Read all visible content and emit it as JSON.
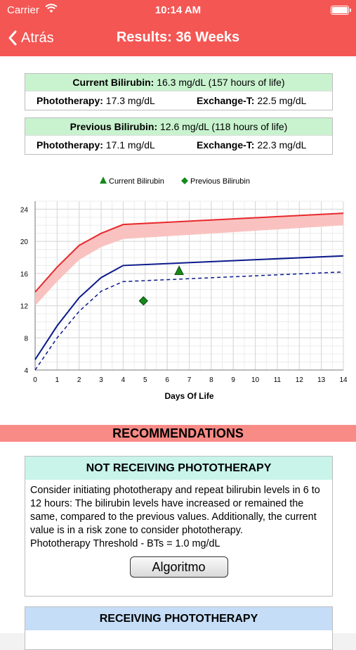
{
  "status": {
    "carrier": "Carrier",
    "time": "10:14 AM"
  },
  "nav": {
    "back_label": "Atrás",
    "title": "Results: 36 Weeks"
  },
  "current": {
    "label": "Current Bilirubin:",
    "value": "16.3 mg/dL (157 hours of life)",
    "photo_label": "Phototherapy:",
    "photo_value": "17.3 mg/dL",
    "exchange_label": "Exchange-T:",
    "exchange_value": "22.5 mg/dL"
  },
  "previous": {
    "label": "Previous Bilirubin:",
    "value": "12.6 mg/dL (118 hours of life)",
    "photo_label": "Phototherapy:",
    "photo_value": "17.1 mg/dL",
    "exchange_label": "Exchange-T:",
    "exchange_value": "22.3 mg/dL"
  },
  "chart_data": {
    "type": "line",
    "xlabel": "Days Of Life",
    "ylabel": "",
    "xlim": [
      0,
      14
    ],
    "ylim": [
      4,
      25
    ],
    "xticks": [
      0,
      1,
      2,
      3,
      4,
      5,
      6,
      7,
      8,
      9,
      10,
      11,
      12,
      13,
      14
    ],
    "yticks": [
      4,
      8,
      12,
      16,
      20,
      24
    ],
    "grid": true,
    "legend_position": "top-center",
    "legend": [
      "Current Bilirubin",
      "Previous Bilirubin"
    ],
    "colors": {
      "exchange": "#e8282c",
      "exchange_band": "#f9c2c0",
      "phototherapy": "#0b1a8c",
      "marker": "#138a1a"
    },
    "series": [
      {
        "style": "solid-red",
        "x": [
          0,
          1,
          2,
          3,
          4,
          14
        ],
        "y": [
          13.7,
          16.8,
          19.5,
          21.0,
          22.1,
          23.5
        ]
      },
      {
        "style": "band-red",
        "x": [
          0,
          1,
          2,
          3,
          4,
          14
        ],
        "y": [
          12.0,
          15.0,
          17.7,
          19.3,
          20.3,
          22.0
        ]
      },
      {
        "style": "solid-blue",
        "x": [
          0,
          1,
          2,
          3,
          4,
          14
        ],
        "y": [
          5.3,
          9.5,
          13.0,
          15.5,
          17.0,
          18.2
        ]
      },
      {
        "style": "dashed-blue",
        "x": [
          0,
          1,
          2,
          3,
          4,
          14
        ],
        "y": [
          4.0,
          8.0,
          11.3,
          13.8,
          15.0,
          16.2
        ]
      }
    ],
    "points": [
      {
        "name": "Current Bilirubin",
        "marker": "triangle",
        "x": 6.54,
        "y": 16.3
      },
      {
        "name": "Previous Bilirubin",
        "marker": "diamond",
        "x": 4.92,
        "y": 12.6
      }
    ]
  },
  "recommendations": {
    "header": "RECOMMENDATIONS",
    "not_receiving": {
      "title": "NOT RECEIVING PHOTOTHERAPY",
      "text": "Consider initiating phototherapy and repeat bilirubin levels in 6 to 12 hours: The bilirubin levels have increased or remained the same, compared to the previous values. Additionally, the current value is in a risk zone to consider phototherapy.",
      "threshold": "Phototherapy Threshold - BTs = 1.0 mg/dL",
      "button": "Algoritmo"
    },
    "receiving": {
      "title": "RECEIVING PHOTOTHERAPY"
    }
  }
}
